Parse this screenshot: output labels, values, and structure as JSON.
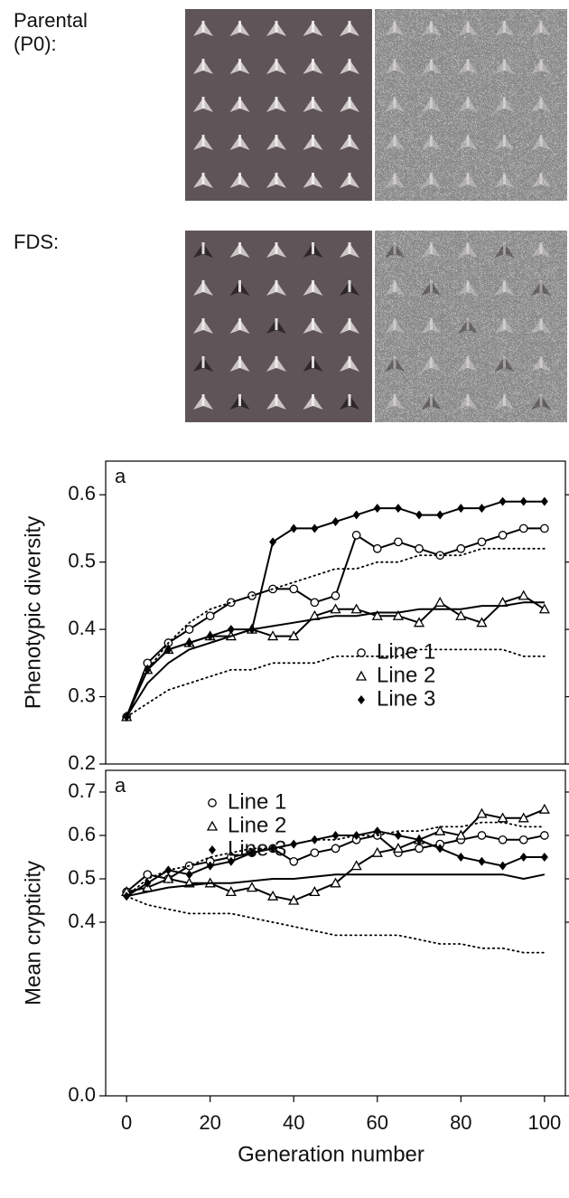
{
  "panels": [
    {
      "label": [
        "Parental",
        "(P0):"
      ]
    },
    {
      "label": [
        "FDS:"
      ]
    }
  ],
  "chart_data": [
    {
      "type": "line",
      "ylabel": "Phenotypic diversity",
      "annotation": "a",
      "xlim": [
        -5,
        105
      ],
      "ylim": [
        0.2,
        0.65
      ],
      "yticks": [
        0.2,
        0.3,
        0.4,
        0.5,
        0.6
      ],
      "legend": "lower center",
      "x": [
        0,
        5,
        10,
        15,
        20,
        25,
        30,
        35,
        40,
        45,
        50,
        55,
        60,
        65,
        70,
        75,
        80,
        85,
        90,
        95,
        100
      ],
      "series": [
        {
          "name": "Line 1",
          "color": "#000000",
          "marker": "circle",
          "style": "solid",
          "values": [
            0.27,
            0.35,
            0.38,
            0.4,
            0.42,
            0.44,
            0.45,
            0.46,
            0.46,
            0.44,
            0.45,
            0.54,
            0.52,
            0.53,
            0.52,
            0.51,
            0.52,
            0.53,
            0.54,
            0.55,
            0.55
          ]
        },
        {
          "name": "Line 2",
          "color": "#000000",
          "marker": "triangle",
          "style": "solid",
          "values": [
            0.27,
            0.34,
            0.37,
            0.38,
            0.39,
            0.39,
            0.4,
            0.39,
            0.39,
            0.42,
            0.43,
            0.43,
            0.42,
            0.42,
            0.41,
            0.44,
            0.42,
            0.41,
            0.44,
            0.45,
            0.43
          ]
        },
        {
          "name": "Line 3",
          "color": "#000000",
          "marker": "diamond",
          "style": "solid",
          "values": [
            0.27,
            0.34,
            0.37,
            0.38,
            0.39,
            0.4,
            0.4,
            0.53,
            0.55,
            0.55,
            0.56,
            0.57,
            0.58,
            0.58,
            0.57,
            0.57,
            0.58,
            0.58,
            0.59,
            0.59,
            0.59
          ]
        },
        {
          "color": "#000000",
          "marker": "none",
          "style": "solid",
          "values": [
            0.27,
            0.32,
            0.35,
            0.37,
            0.38,
            0.39,
            0.4,
            0.405,
            0.41,
            0.415,
            0.42,
            0.42,
            0.425,
            0.425,
            0.43,
            0.43,
            0.43,
            0.435,
            0.435,
            0.44,
            0.44
          ]
        },
        {
          "color": "#000000",
          "marker": "none",
          "style": "dotted",
          "values": [
            0.27,
            0.34,
            0.38,
            0.41,
            0.43,
            0.44,
            0.45,
            0.46,
            0.47,
            0.48,
            0.49,
            0.49,
            0.5,
            0.5,
            0.51,
            0.51,
            0.51,
            0.52,
            0.52,
            0.52,
            0.52
          ]
        },
        {
          "color": "#000000",
          "marker": "none",
          "style": "dotted",
          "values": [
            0.27,
            0.29,
            0.31,
            0.32,
            0.33,
            0.34,
            0.34,
            0.35,
            0.35,
            0.35,
            0.36,
            0.36,
            0.36,
            0.36,
            0.37,
            0.37,
            0.37,
            0.37,
            0.37,
            0.36,
            0.36
          ]
        }
      ]
    },
    {
      "type": "line",
      "ylabel": "Mean crypticity",
      "xlabel": "Generation number",
      "annotation": "a",
      "xlim": [
        -5,
        105
      ],
      "ylim": [
        0,
        0.75
      ],
      "xticks": [
        0,
        20,
        40,
        60,
        80,
        100
      ],
      "yticks": [
        {
          "value": 0,
          "label": "0.0"
        },
        0.4,
        0.5,
        0.6,
        0.7
      ],
      "legend": "upper left",
      "x": [
        0,
        5,
        10,
        15,
        20,
        25,
        30,
        35,
        40,
        45,
        50,
        55,
        60,
        65,
        70,
        75,
        80,
        85,
        90,
        95,
        100
      ],
      "series": [
        {
          "name": "Line 1",
          "color": "#000000",
          "marker": "circle",
          "style": "solid",
          "values": [
            0.47,
            0.51,
            0.5,
            0.53,
            0.54,
            0.55,
            0.56,
            0.57,
            0.54,
            0.56,
            0.57,
            0.59,
            0.6,
            0.56,
            0.57,
            0.58,
            0.59,
            0.6,
            0.59,
            0.59,
            0.6
          ]
        },
        {
          "name": "Line 2",
          "color": "#000000",
          "marker": "triangle",
          "style": "solid",
          "values": [
            0.47,
            0.48,
            0.5,
            0.49,
            0.49,
            0.47,
            0.48,
            0.46,
            0.45,
            0.47,
            0.49,
            0.53,
            0.56,
            0.57,
            0.59,
            0.61,
            0.6,
            0.65,
            0.64,
            0.64,
            0.66
          ]
        },
        {
          "name": "Line 3",
          "color": "#000000",
          "marker": "diamond",
          "style": "solid",
          "values": [
            0.46,
            0.49,
            0.52,
            0.51,
            0.53,
            0.54,
            0.56,
            0.57,
            0.58,
            0.59,
            0.6,
            0.6,
            0.61,
            0.6,
            0.59,
            0.57,
            0.55,
            0.54,
            0.53,
            0.55,
            0.55
          ]
        },
        {
          "color": "#000000",
          "marker": "none",
          "style": "solid",
          "values": [
            0.46,
            0.47,
            0.48,
            0.485,
            0.49,
            0.49,
            0.495,
            0.5,
            0.5,
            0.505,
            0.51,
            0.51,
            0.51,
            0.51,
            0.51,
            0.51,
            0.51,
            0.51,
            0.51,
            0.5,
            0.51
          ]
        },
        {
          "color": "#000000",
          "marker": "none",
          "style": "dotted",
          "values": [
            0.46,
            0.5,
            0.52,
            0.53,
            0.55,
            0.56,
            0.57,
            0.57,
            0.58,
            0.59,
            0.59,
            0.6,
            0.6,
            0.61,
            0.61,
            0.62,
            0.62,
            0.63,
            0.63,
            0.62,
            0.62
          ]
        },
        {
          "color": "#000000",
          "marker": "none",
          "style": "dotted",
          "values": [
            0.46,
            0.44,
            0.43,
            0.42,
            0.42,
            0.42,
            0.41,
            0.4,
            0.39,
            0.38,
            0.37,
            0.37,
            0.37,
            0.37,
            0.36,
            0.35,
            0.35,
            0.34,
            0.34,
            0.33,
            0.33
          ]
        }
      ]
    }
  ]
}
